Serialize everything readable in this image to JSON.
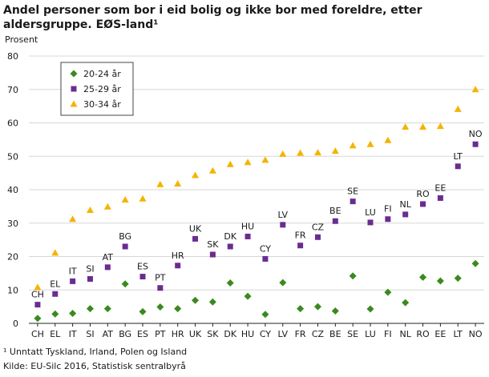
{
  "title": "Andel personer som bor i eid bolig og ikke bor med foreldre, etter aldersgruppe. EØS-land¹",
  "footnote": "¹ Unntatt Tyskland, Irland, Polen og Island",
  "source": "Kilde: EU-Silc 2016, Statistisk sentralbyrå",
  "chart_data": {
    "type": "scatter",
    "ylabel": "Prosent",
    "ylim": [
      0,
      80
    ],
    "yticks": [
      0,
      10,
      20,
      30,
      40,
      50,
      60,
      70,
      80
    ],
    "grid": true,
    "legend_position": "top-left",
    "categories": [
      "CH",
      "EL",
      "IT",
      "SI",
      "AT",
      "BG",
      "ES",
      "PT",
      "HR",
      "UK",
      "SK",
      "DK",
      "HU",
      "CY",
      "LV",
      "FR",
      "CZ",
      "BE",
      "SE",
      "LU",
      "FI",
      "NL",
      "RO",
      "EE",
      "LT",
      "NO"
    ],
    "series": [
      {
        "name": "20-24 år",
        "color": "#3a8a1e",
        "marker": "diamond",
        "values": [
          1.5,
          2.8,
          3.0,
          4.4,
          4.4,
          11.8,
          3.5,
          4.9,
          4.4,
          6.9,
          6.4,
          12.1,
          8.1,
          2.7,
          12.2,
          4.4,
          5.0,
          3.7,
          14.2,
          4.3,
          9.3,
          6.2,
          13.8,
          12.7,
          13.5,
          17.9
        ]
      },
      {
        "name": "25-29 år",
        "color": "#6b2c91",
        "marker": "square",
        "values": [
          5.6,
          8.8,
          12.6,
          13.3,
          16.8,
          23.0,
          14.0,
          10.6,
          17.3,
          25.3,
          20.6,
          23.0,
          26.0,
          19.3,
          29.5,
          23.3,
          25.8,
          30.6,
          36.5,
          30.2,
          31.2,
          32.6,
          35.7,
          37.5,
          47.0,
          53.6
        ]
      },
      {
        "name": "30-34 år",
        "color": "#f4b400",
        "marker": "triangle",
        "values": [
          10.8,
          21.1,
          31.2,
          33.9,
          34.9,
          37.0,
          37.3,
          41.6,
          41.8,
          44.3,
          45.7,
          47.6,
          48.2,
          48.9,
          50.7,
          51.0,
          51.1,
          51.6,
          53.2,
          53.6,
          54.8,
          58.8,
          58.8,
          59.0,
          64.1,
          70.0
        ]
      }
    ],
    "point_labels": {
      "series": "25-29 år",
      "labels": {
        "CH": "CH",
        "EL": "EL",
        "IT": "IT",
        "SI": "SI",
        "AT": "AT",
        "BG": "BG",
        "ES": "ES",
        "PT": "PT",
        "HR": "HR",
        "UK": "UK",
        "SK": "SK",
        "DK": "DK",
        "HU": "HU",
        "CY": "CY",
        "LV": "LV",
        "FR": "FR",
        "CZ": "CZ",
        "BE": "BE",
        "SE": "SE",
        "LU": "LU",
        "FI": "FI",
        "NL": "NL",
        "RO": "RO",
        "EE": "EE",
        "LT": "LT",
        "NO": "NO"
      }
    }
  }
}
